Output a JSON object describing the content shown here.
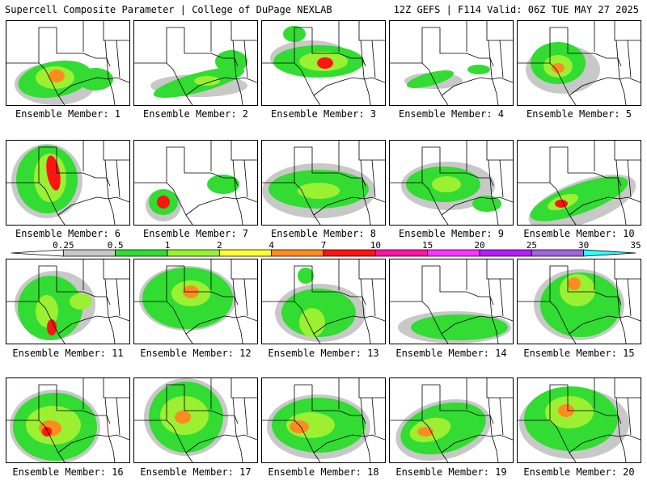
{
  "header": {
    "left_title": "Supercell Composite Parameter | College of DuPage NEXLAB",
    "right_title": "12Z GEFS | F114 Valid: 06Z TUE MAY 27 2025"
  },
  "members": [
    {
      "label": "Ensemble Member: 1"
    },
    {
      "label": "Ensemble Member: 2"
    },
    {
      "label": "Ensemble Member: 3"
    },
    {
      "label": "Ensemble Member: 4"
    },
    {
      "label": "Ensemble Member: 5"
    },
    {
      "label": "Ensemble Member: 6"
    },
    {
      "label": "Ensemble Member: 7"
    },
    {
      "label": "Ensemble Member: 8"
    },
    {
      "label": "Ensemble Member: 9"
    },
    {
      "label": "Ensemble Member: 10"
    },
    {
      "label": "Ensemble Member: 11"
    },
    {
      "label": "Ensemble Member: 12"
    },
    {
      "label": "Ensemble Member: 13"
    },
    {
      "label": "Ensemble Member: 14"
    },
    {
      "label": "Ensemble Member: 15"
    },
    {
      "label": "Ensemble Member: 16"
    },
    {
      "label": "Ensemble Member: 17"
    },
    {
      "label": "Ensemble Member: 18"
    },
    {
      "label": "Ensemble Member: 19"
    },
    {
      "label": "Ensemble Member: 20"
    }
  ],
  "colorbar": {
    "labels": [
      "0.25",
      "0.5",
      "1",
      "2",
      "4",
      "7",
      "10",
      "15",
      "20",
      "25",
      "30",
      "35"
    ],
    "colors": [
      "#ffffff",
      "#c8c8c8",
      "#32dc32",
      "#9bf032",
      "#ffff32",
      "#ff8c1e",
      "#ff1414",
      "#ff14a0",
      "#ff32ff",
      "#b41eff",
      "#a064dc",
      "#32ffff"
    ]
  },
  "field_colors": {
    "low": "#c8c8c8",
    "green": "#32dc32",
    "lightgreen": "#9bf032",
    "yellow": "#ffff32",
    "orange": "#ff8c1e",
    "red": "#ff1414"
  }
}
